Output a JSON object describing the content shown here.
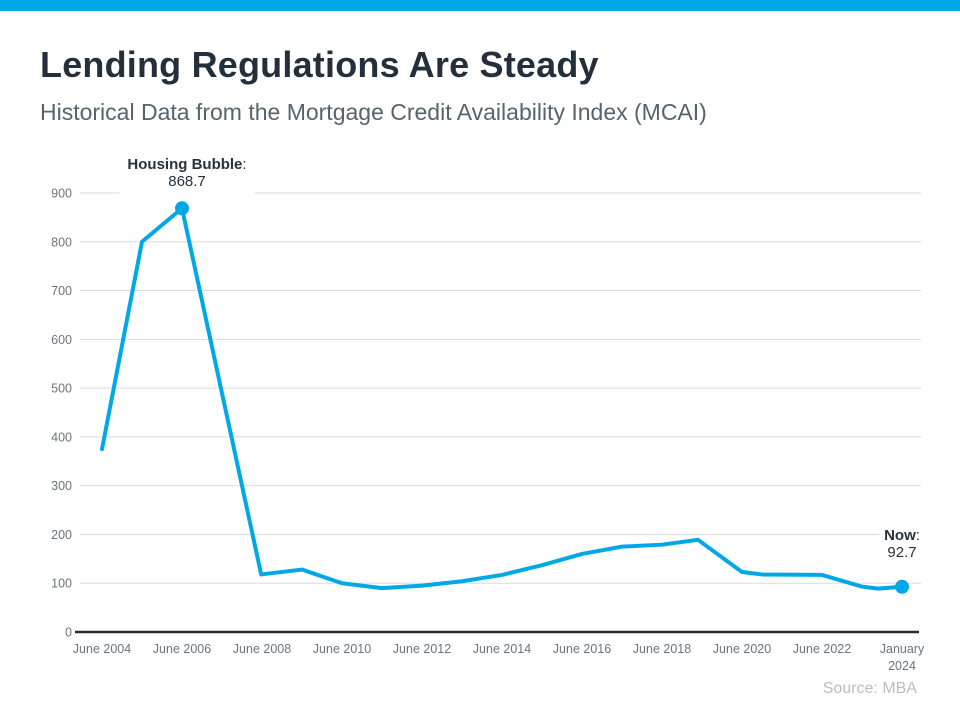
{
  "top_bar": {
    "color": "#00A8E8"
  },
  "header": {
    "title": "Lending Regulations Are Steady",
    "subtitle": "Historical Data from the Mortgage Credit Availability Index (MCAI)"
  },
  "source": "Source: MBA",
  "chart_data": {
    "type": "line",
    "title": "Historical Data from the Mortgage Credit Availability Index (MCAI)",
    "xlabel": "",
    "ylabel": "",
    "ylim": [
      0,
      900
    ],
    "grid": true,
    "legend": "none",
    "y_ticks": [
      0,
      100,
      200,
      300,
      400,
      500,
      600,
      700,
      800,
      900
    ],
    "x_ticks": [
      {
        "year": 2004.5,
        "lines": [
          "June 2004"
        ]
      },
      {
        "year": 2006.5,
        "lines": [
          "June 2006"
        ]
      },
      {
        "year": 2008.5,
        "lines": [
          "June 2008"
        ]
      },
      {
        "year": 2010.5,
        "lines": [
          "June 2010"
        ]
      },
      {
        "year": 2012.5,
        "lines": [
          "June 2012"
        ]
      },
      {
        "year": 2014.5,
        "lines": [
          "June 2014"
        ]
      },
      {
        "year": 2016.5,
        "lines": [
          "June 2016"
        ]
      },
      {
        "year": 2018.5,
        "lines": [
          "June 2018"
        ]
      },
      {
        "year": 2020.5,
        "lines": [
          "June 2020"
        ]
      },
      {
        "year": 2022.5,
        "lines": [
          "June 2022"
        ]
      },
      {
        "year": 2024.08,
        "axis_pos": 2024.5,
        "lines": [
          "January",
          "2024"
        ]
      }
    ],
    "series": [
      {
        "name": "Mortgage Credit Availability Index",
        "color": "#00A8E8",
        "points": [
          {
            "year": 2004.5,
            "v": 375
          },
          {
            "year": 2005.5,
            "v": 800
          },
          {
            "year": 2006.5,
            "v": 868.7
          },
          {
            "year": 2008.48,
            "v": 118
          },
          {
            "year": 2009.5,
            "v": 128
          },
          {
            "year": 2010.5,
            "v": 100
          },
          {
            "year": 2011.5,
            "v": 90
          },
          {
            "year": 2012.5,
            "v": 95
          },
          {
            "year": 2013.5,
            "v": 104
          },
          {
            "year": 2014.5,
            "v": 117
          },
          {
            "year": 2015.5,
            "v": 137
          },
          {
            "year": 2016.5,
            "v": 160
          },
          {
            "year": 2017.5,
            "v": 175
          },
          {
            "year": 2018.5,
            "v": 179
          },
          {
            "year": 2019.4,
            "v": 189
          },
          {
            "year": 2020.5,
            "v": 123
          },
          {
            "year": 2021.0,
            "v": 118
          },
          {
            "year": 2022.5,
            "v": 117
          },
          {
            "year": 2023.5,
            "v": 93
          },
          {
            "year": 2023.9,
            "v": 89
          },
          {
            "year": 2024.08,
            "v": 92.7,
            "axis_pos": 2024.5
          }
        ]
      }
    ],
    "markers": [
      {
        "year": 2006.5,
        "v": 868.7
      },
      {
        "year": 2024.08,
        "v": 92.7,
        "axis_pos": 2024.5
      }
    ],
    "annotations": [
      {
        "label": "Housing Bubble",
        "colon": ":",
        "value": "868.7"
      },
      {
        "label": "Now",
        "colon": ":",
        "value": "92.7"
      }
    ],
    "style": {
      "grid_color": "#D8DBDE",
      "axis_color": "#262B33",
      "tick_label_color": "#6A7580"
    }
  }
}
